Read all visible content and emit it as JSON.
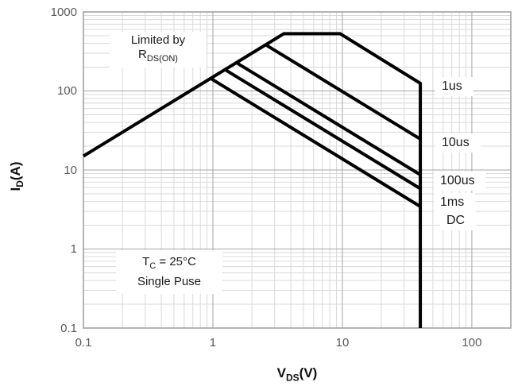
{
  "chart_data": {
    "type": "line",
    "subtype": "safe-operating-area",
    "title": "",
    "xlabel": "VDS(V)",
    "ylabel": "ID(A)",
    "xlabel_parts": {
      "main": "V",
      "sub": "DS",
      "unit": "(V)"
    },
    "ylabel_parts": {
      "main": "I",
      "sub": "D",
      "unit": "(A)"
    },
    "xscale": "log",
    "yscale": "log",
    "xlim": [
      0.1,
      200
    ],
    "ylim": [
      0.1,
      1000
    ],
    "x_ticks": [
      0.1,
      1,
      10,
      100
    ],
    "y_ticks": [
      0.1,
      1,
      10,
      100,
      1000
    ],
    "grid": "log-log major+minor",
    "legend_position": "labels right of curves",
    "series": [
      {
        "name": "1us",
        "points": [
          [
            0.1,
            15
          ],
          [
            3.53,
            530
          ],
          [
            9.6,
            530
          ],
          [
            40,
            125
          ],
          [
            40,
            0.1
          ]
        ]
      },
      {
        "name": "10us",
        "points": [
          [
            2.56,
            384
          ],
          [
            40,
            24.6
          ]
        ]
      },
      {
        "name": "100us",
        "points": [
          [
            1.52,
            228
          ],
          [
            40,
            8.7
          ]
        ]
      },
      {
        "name": "1ms",
        "points": [
          [
            1.24,
            186
          ],
          [
            40,
            5.8
          ]
        ]
      },
      {
        "name": "DC",
        "points": [
          [
            0.96,
            144
          ],
          [
            40,
            3.45
          ]
        ]
      }
    ],
    "annotations": {
      "limited_by": {
        "line1": "Limited by",
        "r_main": "R",
        "r_sub": "DS(ON)"
      },
      "conditions": {
        "t_main": "T",
        "t_sub": "C",
        "t_rest": " = 25°C",
        "line2": "Single Puse"
      }
    },
    "colors": {
      "curve": "#000000",
      "grid_major": "#a6a6a6",
      "grid_minor": "#d9d9d9",
      "border": "#9b9b9b",
      "tick_text": "#595959"
    }
  }
}
